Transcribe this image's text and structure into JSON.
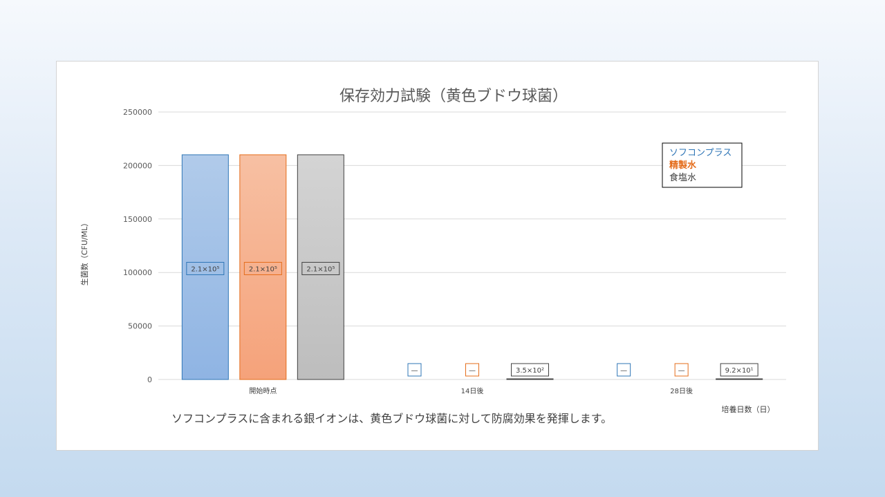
{
  "chart_data": {
    "type": "bar",
    "title": "保存効力試験（黄色ブドウ球菌）",
    "ylabel": "生菌数（CFU/ML）",
    "xlabel": "培養日数（日）",
    "ylim": [
      0,
      250000
    ],
    "yticks": [
      "0",
      "50000",
      "100000",
      "150000",
      "200000",
      "250000"
    ],
    "ytick_values": [
      0,
      50000,
      100000,
      150000,
      200000,
      250000
    ],
    "grid": true,
    "legend_position": "top-right",
    "categories": [
      "開始時点",
      "14日後",
      "28日後"
    ],
    "series": [
      {
        "name": "ソフコンプラス",
        "color": "#2e75b6",
        "fill_top": "#b1cbea",
        "fill_bottom": "#8fb4e3",
        "values": [
          210000,
          0,
          0
        ],
        "labels": [
          "2.1×10⁵",
          "—",
          "—"
        ]
      },
      {
        "name": "精製水",
        "color": "#e46c1a",
        "fill_top": "#f7c0a3",
        "fill_bottom": "#f5a27a",
        "values": [
          210000,
          0,
          0
        ],
        "labels": [
          "2.1×10⁵",
          "—",
          "—"
        ]
      },
      {
        "name": "食塩水",
        "color": "#404040",
        "fill_top": "#d4d4d4",
        "fill_bottom": "#bdbdbd",
        "values": [
          210000,
          350,
          92
        ],
        "labels": [
          "2.1×10⁵",
          "3.5×10²",
          "9.2×10¹"
        ]
      }
    ]
  },
  "caption": "ソフコンプラスに含まれる銀イオンは、黄色ブドウ球菌に対して防腐効果を発揮します。"
}
